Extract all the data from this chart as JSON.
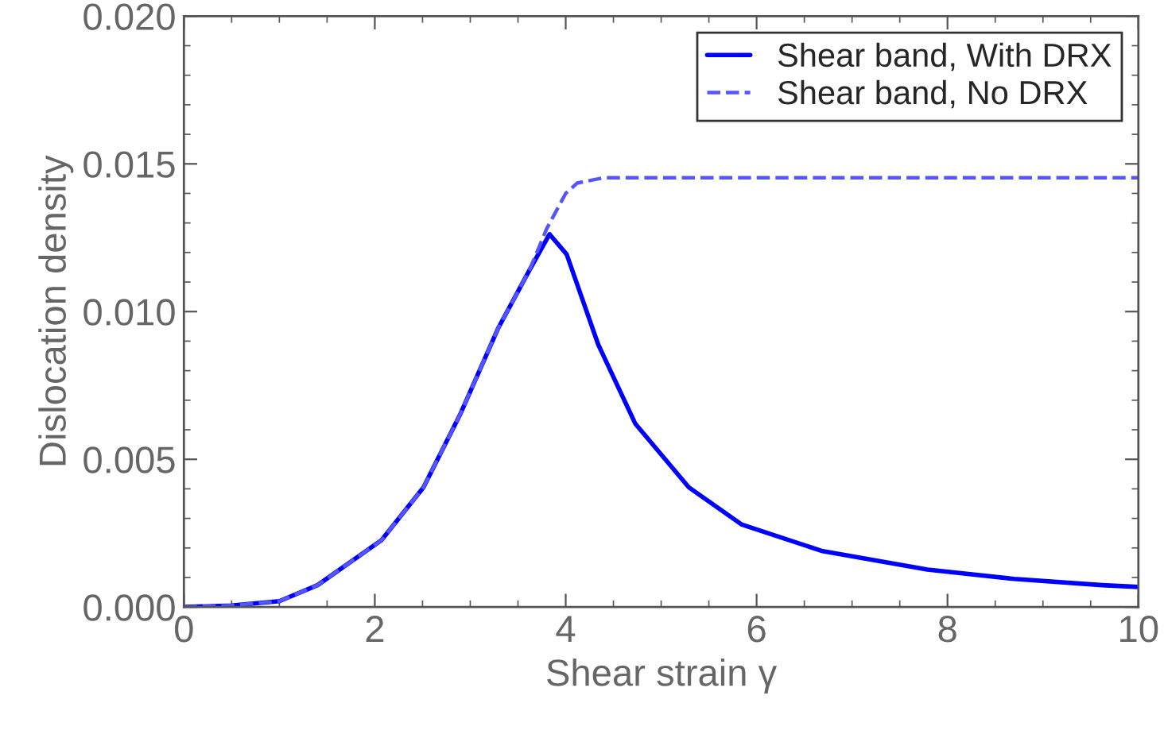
{
  "chart_data": {
    "type": "line",
    "xlabel": "Shear strain γ",
    "ylabel": "Dislocation density",
    "xlim": [
      0,
      10
    ],
    "ylim": [
      0,
      0.02
    ],
    "xticks": [
      0,
      2,
      4,
      6,
      8,
      10
    ],
    "yticks": [
      {
        "value": 0,
        "label": "0.000"
      },
      {
        "value": 0.005,
        "label": "0.005"
      },
      {
        "value": 0.01,
        "label": "0.010"
      },
      {
        "value": 0.015,
        "label": "0.015"
      },
      {
        "value": 0.02,
        "label": "0.020"
      }
    ],
    "grid": false,
    "legend": "top right",
    "marker": "none",
    "series": [
      {
        "name": "Shear band, With DRX",
        "color": "#0000ff",
        "line_style": "solid",
        "x": [
          0,
          0.5,
          1,
          1.4,
          2.07,
          2.51,
          2.9,
          3.29,
          3.62,
          3.83,
          4.01,
          4.34,
          4.73,
          5.29,
          5.84,
          6.68,
          7.79,
          8.7,
          9.62,
          10
        ],
        "values": [
          0,
          5e-05,
          0.0002,
          0.00074,
          0.00226,
          0.00405,
          0.00656,
          0.00942,
          0.0114,
          0.01262,
          0.01194,
          0.00889,
          0.0062,
          0.00405,
          0.0028,
          0.0019,
          0.00127,
          0.00095,
          0.00074,
          0.00068
        ]
      },
      {
        "name": "Shear band, No DRX",
        "color": "#5555ff",
        "line_style": "dashed",
        "x": [
          0,
          0.5,
          1,
          1.4,
          2.07,
          2.51,
          2.9,
          3.29,
          3.62,
          3.8,
          4.0,
          4.12,
          4.4,
          6,
          8,
          10
        ],
        "values": [
          0,
          5e-05,
          0.0002,
          0.00074,
          0.00226,
          0.00405,
          0.00656,
          0.00942,
          0.0114,
          0.0128,
          0.014,
          0.01435,
          0.01453,
          0.01453,
          0.01453,
          0.01453
        ]
      }
    ]
  }
}
